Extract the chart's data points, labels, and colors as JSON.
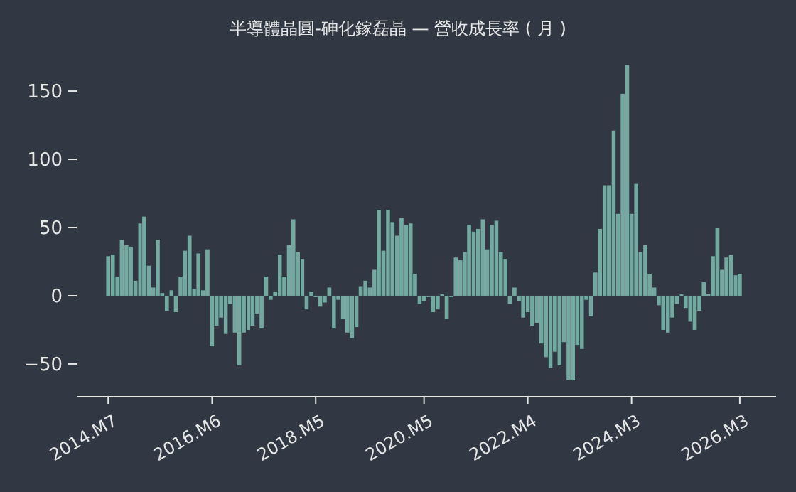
{
  "chart_data": {
    "type": "bar",
    "title": "半導體晶圓-砷化鎵磊晶 — 營收成長率 ( 月 )",
    "x": [
      "2014-07",
      "2014-08",
      "2014-09",
      "2014-10",
      "2014-11",
      "2014-12",
      "2015-01",
      "2015-02",
      "2015-03",
      "2015-04",
      "2015-05",
      "2015-06",
      "2015-07",
      "2015-08",
      "2015-09",
      "2015-10",
      "2015-11",
      "2015-12",
      "2016-01",
      "2016-02",
      "2016-03",
      "2016-04",
      "2016-05",
      "2016-06",
      "2016-07",
      "2016-08",
      "2016-09",
      "2016-10",
      "2016-11",
      "2016-12",
      "2017-01",
      "2017-02",
      "2017-03",
      "2017-04",
      "2017-05",
      "2017-06",
      "2017-07",
      "2017-08",
      "2017-09",
      "2017-10",
      "2017-11",
      "2017-12",
      "2018-01",
      "2018-02",
      "2018-03",
      "2018-04",
      "2018-05",
      "2018-06",
      "2018-07",
      "2018-08",
      "2018-09",
      "2018-10",
      "2018-11",
      "2018-12",
      "2019-01",
      "2019-02",
      "2019-03",
      "2019-04",
      "2019-05",
      "2019-06",
      "2019-07",
      "2019-08",
      "2019-09",
      "2019-10",
      "2019-11",
      "2019-12",
      "2020-01",
      "2020-02",
      "2020-03",
      "2020-04",
      "2020-05",
      "2020-06",
      "2020-07",
      "2020-08",
      "2020-09",
      "2020-10",
      "2020-11",
      "2020-12",
      "2021-01",
      "2021-02",
      "2021-03",
      "2021-04",
      "2021-05",
      "2021-06",
      "2021-07",
      "2021-08",
      "2021-09",
      "2021-10",
      "2021-11",
      "2021-12",
      "2022-01",
      "2022-02",
      "2022-03",
      "2022-04",
      "2022-05",
      "2022-06",
      "2022-07",
      "2022-08",
      "2022-09",
      "2022-10",
      "2022-11",
      "2022-12",
      "2023-01",
      "2023-02",
      "2023-03",
      "2023-04",
      "2023-05",
      "2023-06",
      "2023-07",
      "2023-08",
      "2023-09",
      "2023-10",
      "2023-11",
      "2023-12",
      "2024-01",
      "2024-02",
      "2024-03",
      "2024-04",
      "2024-05",
      "2024-06",
      "2024-07",
      "2024-08",
      "2024-09",
      "2024-10",
      "2024-11",
      "2024-12",
      "2025-01",
      "2025-02",
      "2025-03",
      "2025-04",
      "2025-05",
      "2025-06",
      "2025-07",
      "2025-08",
      "2025-09",
      "2025-10",
      "2025-11",
      "2025-12",
      "2026-01",
      "2026-02",
      "2026-03"
    ],
    "values": [
      29,
      30,
      14,
      41,
      37,
      36,
      11,
      53,
      58,
      22,
      6,
      41,
      2,
      -11,
      4,
      -12,
      14,
      33,
      44,
      5,
      31,
      4,
      34,
      -37,
      -22,
      -16,
      -28,
      -6,
      -27,
      -51,
      -27,
      -25,
      -22,
      -13,
      -24,
      14,
      -3,
      3,
      30,
      14,
      37,
      56,
      32,
      27,
      -10,
      3,
      -1,
      -8,
      -5,
      6,
      -24,
      -3,
      -17,
      -27,
      -31,
      -23,
      7,
      11,
      6,
      19,
      63,
      33,
      63,
      54,
      44,
      57,
      52,
      53,
      16,
      -6,
      -4,
      -1,
      -12,
      -10,
      1,
      -17,
      -1,
      28,
      26,
      32,
      52,
      47,
      49,
      56,
      34,
      52,
      55,
      32,
      27,
      -6,
      6,
      -4,
      -16,
      -12,
      -22,
      -20,
      -35,
      -45,
      -53,
      -41,
      -51,
      -34,
      -62,
      -62,
      -36,
      -39,
      -3,
      -15,
      17,
      49,
      81,
      81,
      121,
      60,
      148,
      169,
      60,
      82,
      32,
      37,
      16,
      6,
      -7,
      -25,
      -27,
      -16,
      -6,
      1,
      -9,
      -19,
      -25,
      -11,
      10,
      1,
      29,
      50,
      19,
      28,
      30,
      15,
      16
    ],
    "color": "#73a9a0",
    "xlim": [
      "2013-12",
      "2026-11"
    ],
    "xticks": [
      {
        "value": "2014-07",
        "label": "2014.M7"
      },
      {
        "value": "2016-06",
        "label": "2016.M6"
      },
      {
        "value": "2018-05",
        "label": "2018.M5"
      },
      {
        "value": "2020-05",
        "label": "2020.M5"
      },
      {
        "value": "2022-04",
        "label": "2022.M4"
      },
      {
        "value": "2024-03",
        "label": "2024.M3"
      },
      {
        "value": "2026-03",
        "label": "2026.M3"
      }
    ],
    "ylim": [
      -74,
      169
    ],
    "yticks": [
      {
        "value": -50,
        "label": "−50"
      },
      0,
      50,
      100,
      150
    ],
    "grid": false
  }
}
